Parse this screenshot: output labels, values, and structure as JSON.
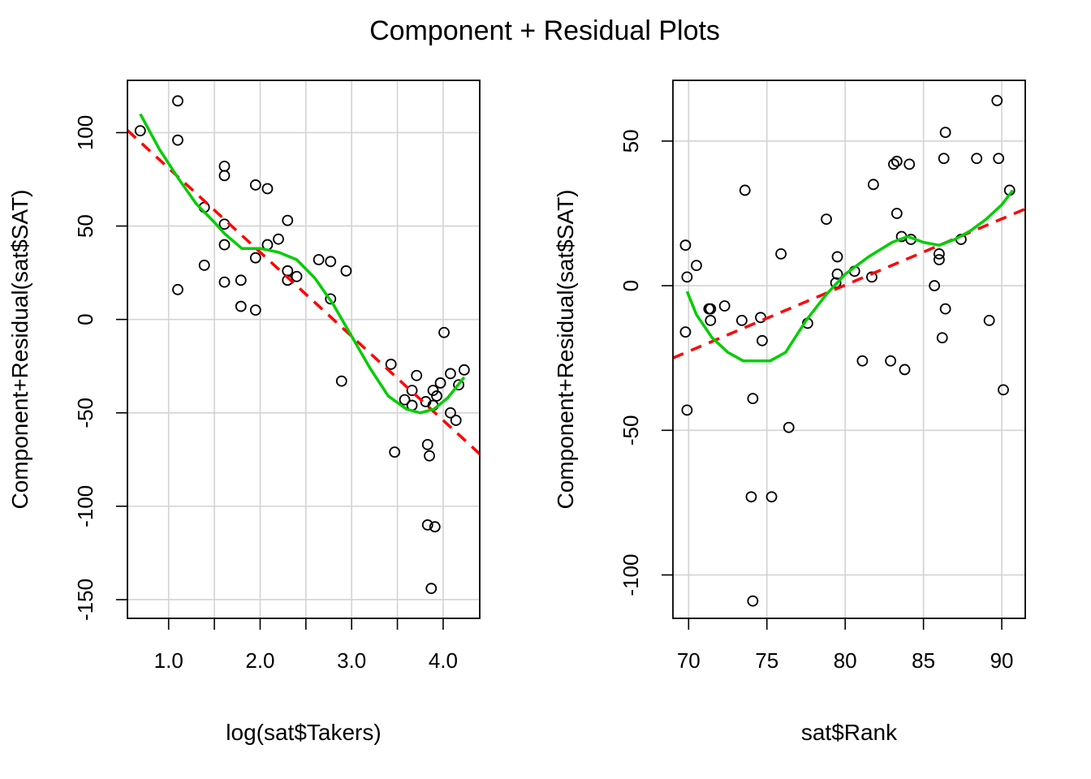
{
  "title": "Component + Residual Plots",
  "colors": {
    "points": "#000000",
    "fit": "#ff0000",
    "smooth": "#00cd00",
    "grid": "#d3d3d3"
  },
  "chart_data": [
    {
      "type": "scatter",
      "xlabel": "log(sat$Takers)",
      "ylabel": "Component+Residual(sat$SAT)",
      "xlim": [
        0.55,
        4.4
      ],
      "ylim": [
        -160,
        128
      ],
      "x_ticks": [
        1.0,
        1.5,
        2.0,
        2.5,
        3.0,
        3.5,
        4.0
      ],
      "x_tick_labels": [
        "1.0",
        "",
        "2.0",
        "",
        "3.0",
        "",
        "4.0"
      ],
      "y_ticks": [
        -150,
        -100,
        -50,
        0,
        50,
        100
      ],
      "y_tick_labels": [
        "-150",
        "-100",
        "-50",
        "0",
        "50",
        "100"
      ],
      "grid": true,
      "points": [
        [
          0.69,
          101
        ],
        [
          1.1,
          117
        ],
        [
          1.1,
          96
        ],
        [
          1.1,
          16
        ],
        [
          1.39,
          60
        ],
        [
          1.39,
          29
        ],
        [
          1.61,
          82
        ],
        [
          1.61,
          77
        ],
        [
          1.61,
          51
        ],
        [
          1.61,
          40
        ],
        [
          1.61,
          20
        ],
        [
          1.79,
          21
        ],
        [
          1.79,
          7
        ],
        [
          1.95,
          72
        ],
        [
          1.95,
          33
        ],
        [
          1.95,
          5
        ],
        [
          2.08,
          70
        ],
        [
          2.08,
          40
        ],
        [
          2.2,
          43
        ],
        [
          2.3,
          53
        ],
        [
          2.3,
          26
        ],
        [
          2.3,
          21
        ],
        [
          2.4,
          23
        ],
        [
          2.64,
          32
        ],
        [
          2.77,
          31
        ],
        [
          2.77,
          11
        ],
        [
          2.89,
          -33
        ],
        [
          2.94,
          26
        ],
        [
          3.43,
          -24
        ],
        [
          3.47,
          -71
        ],
        [
          3.58,
          -43
        ],
        [
          3.66,
          -38
        ],
        [
          3.66,
          -46
        ],
        [
          3.71,
          -30
        ],
        [
          3.81,
          -44
        ],
        [
          3.83,
          -67
        ],
        [
          3.83,
          -110
        ],
        [
          3.85,
          -73
        ],
        [
          3.87,
          -144
        ],
        [
          3.89,
          -38
        ],
        [
          3.89,
          -46
        ],
        [
          3.91,
          -111
        ],
        [
          3.93,
          -41
        ],
        [
          3.97,
          -34
        ],
        [
          4.01,
          -7
        ],
        [
          4.08,
          -29
        ],
        [
          4.08,
          -50
        ],
        [
          4.14,
          -54
        ],
        [
          4.17,
          -35
        ],
        [
          4.23,
          -27
        ]
      ],
      "fit_line": {
        "slope": -45,
        "intercept": 126
      },
      "smooth": [
        [
          0.69,
          110
        ],
        [
          0.9,
          91
        ],
        [
          1.1,
          76
        ],
        [
          1.3,
          62
        ],
        [
          1.5,
          52
        ],
        [
          1.61,
          46
        ],
        [
          1.8,
          38
        ],
        [
          2.0,
          38
        ],
        [
          2.2,
          36
        ],
        [
          2.4,
          32
        ],
        [
          2.6,
          22
        ],
        [
          2.8,
          8
        ],
        [
          3.0,
          -9
        ],
        [
          3.2,
          -26
        ],
        [
          3.4,
          -41
        ],
        [
          3.6,
          -48
        ],
        [
          3.75,
          -50
        ],
        [
          3.9,
          -48
        ],
        [
          4.05,
          -42
        ],
        [
          4.23,
          -31
        ]
      ]
    },
    {
      "type": "scatter",
      "xlabel": "sat$Rank",
      "ylabel": "Component+Residual(sat$SAT)",
      "xlim": [
        69,
        91.5
      ],
      "ylim": [
        -115,
        71
      ],
      "x_ticks": [
        70,
        75,
        80,
        85,
        90
      ],
      "x_tick_labels": [
        "70",
        "75",
        "80",
        "85",
        "90"
      ],
      "y_ticks": [
        -100,
        -50,
        0,
        50
      ],
      "y_tick_labels": [
        "-100",
        "-50",
        "0",
        "50"
      ],
      "grid": true,
      "points": [
        [
          69.8,
          14
        ],
        [
          69.8,
          -16
        ],
        [
          69.9,
          3
        ],
        [
          69.9,
          -43
        ],
        [
          70.5,
          7
        ],
        [
          71.3,
          -8
        ],
        [
          71.4,
          -8
        ],
        [
          71.4,
          -12
        ],
        [
          72.3,
          -7
        ],
        [
          73.4,
          -12
        ],
        [
          73.6,
          33
        ],
        [
          74.0,
          -73
        ],
        [
          74.1,
          -109
        ],
        [
          74.1,
          -39
        ],
        [
          74.6,
          -11
        ],
        [
          74.7,
          -19
        ],
        [
          75.3,
          -73
        ],
        [
          75.9,
          11
        ],
        [
          76.4,
          -49
        ],
        [
          77.6,
          -13
        ],
        [
          78.8,
          23
        ],
        [
          79.4,
          1
        ],
        [
          79.5,
          10
        ],
        [
          79.5,
          4
        ],
        [
          80.6,
          5
        ],
        [
          81.1,
          -26
        ],
        [
          81.7,
          3
        ],
        [
          81.8,
          35
        ],
        [
          82.9,
          -26
        ],
        [
          83.1,
          42
        ],
        [
          83.3,
          43
        ],
        [
          83.3,
          25
        ],
        [
          83.6,
          17
        ],
        [
          83.8,
          -29
        ],
        [
          84.1,
          42
        ],
        [
          84.2,
          16
        ],
        [
          85.7,
          0
        ],
        [
          86.0,
          11
        ],
        [
          86.0,
          9
        ],
        [
          86.2,
          -18
        ],
        [
          86.3,
          44
        ],
        [
          86.4,
          53
        ],
        [
          86.4,
          -8
        ],
        [
          87.4,
          16
        ],
        [
          88.4,
          44
        ],
        [
          89.2,
          -12
        ],
        [
          89.7,
          64
        ],
        [
          89.8,
          44
        ],
        [
          90.1,
          -36
        ],
        [
          90.5,
          33
        ]
      ],
      "fit_line": {
        "slope": 2.29,
        "intercept": -183
      },
      "smooth": [
        [
          69.9,
          -2
        ],
        [
          70.5,
          -10
        ],
        [
          71.5,
          -18
        ],
        [
          72.5,
          -23
        ],
        [
          73.5,
          -26
        ],
        [
          74.5,
          -26
        ],
        [
          75.2,
          -26
        ],
        [
          76.2,
          -23
        ],
        [
          77.5,
          -12
        ],
        [
          78.8,
          -3
        ],
        [
          80.0,
          4
        ],
        [
          81.5,
          10
        ],
        [
          83.0,
          15
        ],
        [
          84.0,
          17
        ],
        [
          85.0,
          15
        ],
        [
          86.0,
          14
        ],
        [
          87.0,
          16
        ],
        [
          88.0,
          19
        ],
        [
          89.0,
          23
        ],
        [
          90.0,
          28
        ],
        [
          90.7,
          33
        ]
      ]
    }
  ]
}
